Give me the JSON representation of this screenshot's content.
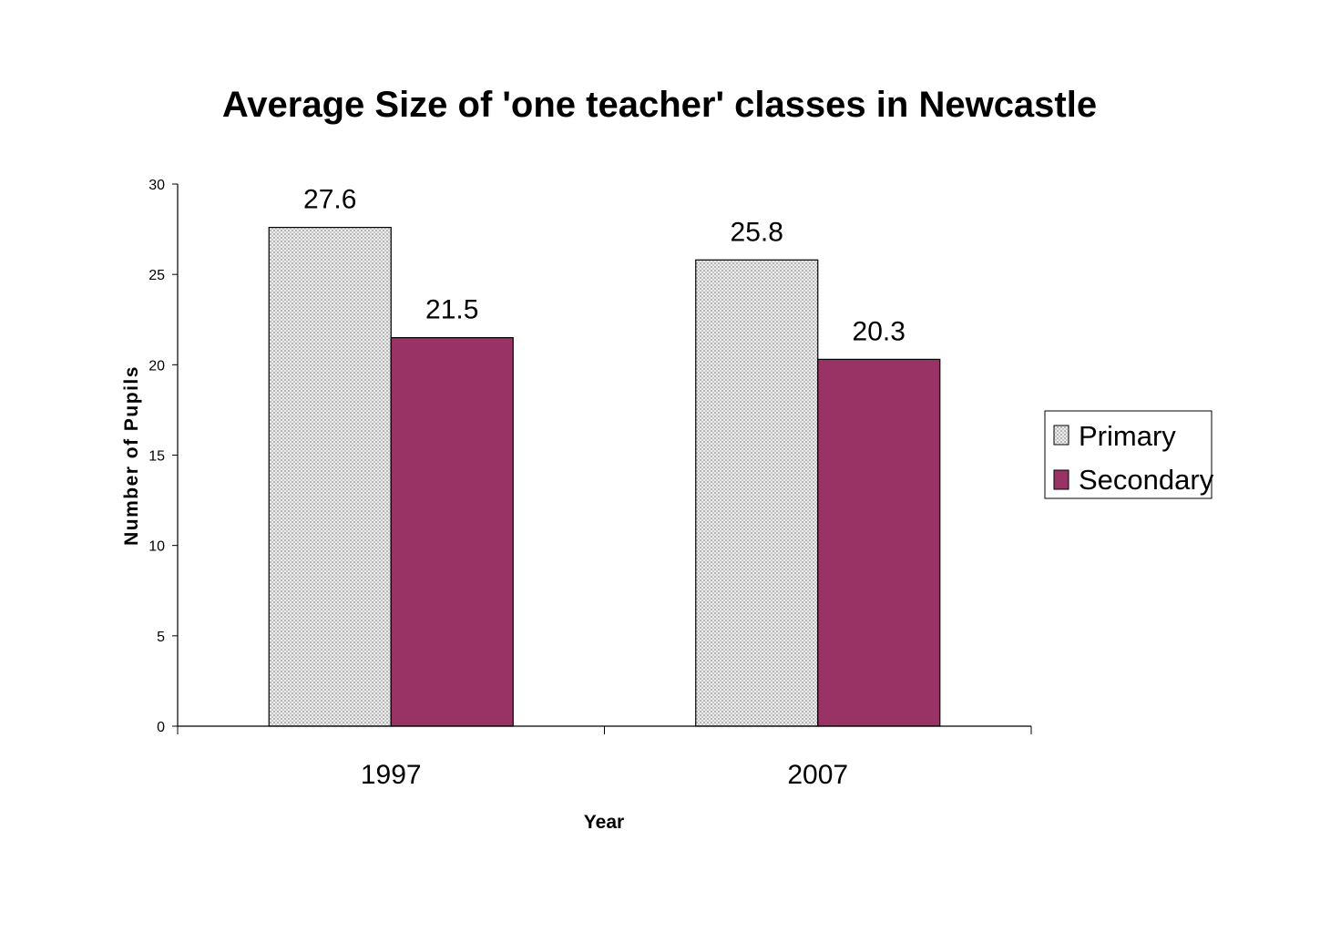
{
  "chart_data": {
    "type": "bar",
    "title": "Average Size of 'one teacher' classes in Newcastle",
    "xlabel": "Year",
    "ylabel": "Number of Pupils",
    "categories": [
      "1997",
      "2007"
    ],
    "series": [
      {
        "name": "Primary",
        "values": [
          27.6,
          25.8
        ],
        "color": "#d9d9d9",
        "pattern": "dotted-grey"
      },
      {
        "name": "Secondary",
        "values": [
          21.5,
          20.3
        ],
        "color": "#993366"
      }
    ],
    "data_labels": [
      [
        "27.6",
        "25.8"
      ],
      [
        "21.5",
        "20.3"
      ]
    ],
    "ylim": [
      0,
      30
    ],
    "yticks": [
      0,
      5,
      10,
      15,
      20,
      25,
      30
    ],
    "grid": false,
    "legend_position": "right"
  }
}
